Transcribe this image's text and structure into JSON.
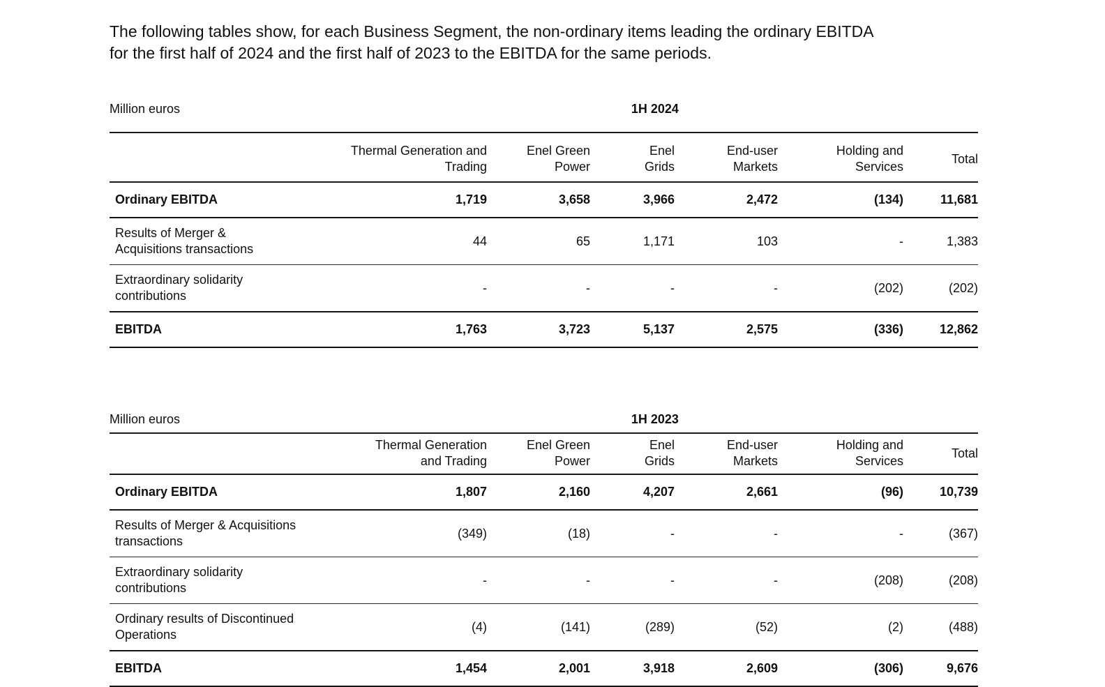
{
  "intro": "The following tables show, for each Business Segment, the non-ordinary items leading the ordinary EBITDA\nfor the first half of 2024 and the first half of 2023 to the EBITDA for the same periods.",
  "tables": [
    {
      "unit_label": "Million euros",
      "period": "1H 2024",
      "columns": [
        "Thermal Generation and\nTrading",
        "Enel Green\nPower",
        "Enel\nGrids",
        "End-user\nMarkets",
        "Holding and\nServices",
        "Total"
      ],
      "rows": [
        {
          "label": "Ordinary EBITDA",
          "bold": true,
          "values": [
            "1,719",
            "3,658",
            "3,966",
            "2,472",
            "(134)",
            "11,681"
          ]
        },
        {
          "label": "Results of Merger &\nAcquisitions transactions",
          "bold": false,
          "values": [
            "44",
            "65",
            "1,171",
            "103",
            "-",
            "1,383"
          ]
        },
        {
          "label": "Extraordinary solidarity\ncontributions",
          "bold": false,
          "values": [
            "-",
            "-",
            "-",
            "-",
            "(202)",
            "(202)"
          ]
        },
        {
          "label": "EBITDA",
          "bold": true,
          "values": [
            "1,763",
            "3,723",
            "5,137",
            "2,575",
            "(336)",
            "12,862"
          ]
        }
      ]
    },
    {
      "unit_label": "Million euros",
      "period": "1H 2023",
      "columns": [
        "Thermal Generation\nand Trading",
        "Enel Green\nPower",
        "Enel\nGrids",
        "End-user\nMarkets",
        "Holding and\nServices",
        "Total"
      ],
      "rows": [
        {
          "label": "Ordinary EBITDA",
          "bold": true,
          "values": [
            "1,807",
            "2,160",
            "4,207",
            "2,661",
            "(96)",
            "10,739"
          ]
        },
        {
          "label": "Results of Merger & Acquisitions\ntransactions",
          "bold": false,
          "values": [
            "(349)",
            "(18)",
            "-",
            "-",
            "-",
            "(367)"
          ]
        },
        {
          "label": "Extraordinary solidarity\ncontributions",
          "bold": false,
          "values": [
            "-",
            "-",
            "-",
            "-",
            "(208)",
            "(208)"
          ]
        },
        {
          "label": "Ordinary results of Discontinued\nOperations",
          "bold": false,
          "values": [
            "(4)",
            "(141)",
            "(289)",
            "(52)",
            "(2)",
            "(488)"
          ]
        },
        {
          "label": "EBITDA",
          "bold": true,
          "values": [
            "1,454",
            "2,001",
            "3,918",
            "2,609",
            "(306)",
            "9,676"
          ]
        }
      ]
    }
  ]
}
